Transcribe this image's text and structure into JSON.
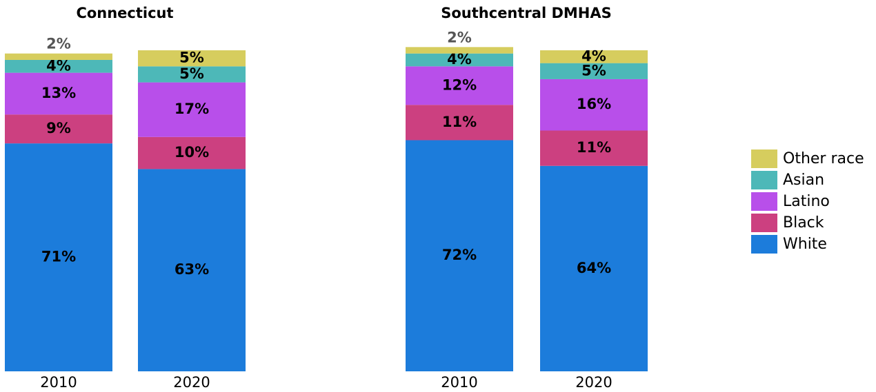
{
  "chart_data": [
    {
      "type": "stacked_bar",
      "title": "Connecticut",
      "categories": [
        "2010",
        "2020"
      ],
      "ylim": [
        0,
        100
      ],
      "series": [
        {
          "name": "White",
          "color": "#1c7cdb",
          "values": [
            71,
            63
          ],
          "value_labels": [
            "71%",
            "63%"
          ]
        },
        {
          "name": "Black",
          "color": "#cc4080",
          "values": [
            9,
            10
          ],
          "value_labels": [
            "9%",
            "10%"
          ]
        },
        {
          "name": "Latino",
          "color": "#b84fea",
          "values": [
            13,
            17
          ],
          "value_labels": [
            "13%",
            "17%"
          ]
        },
        {
          "name": "Asian",
          "color": "#4db8b8",
          "values": [
            4,
            5
          ],
          "value_labels": [
            "4%",
            "5%"
          ]
        },
        {
          "name": "Other race",
          "color": "#d6cd5e",
          "values": [
            2,
            5
          ],
          "value_labels": [
            "2%",
            "5%"
          ]
        }
      ],
      "legend": "right"
    },
    {
      "type": "stacked_bar",
      "title": "Southcentral DMHAS",
      "categories": [
        "2010",
        "2020"
      ],
      "ylim": [
        0,
        100
      ],
      "series": [
        {
          "color": "#1c7cdb",
          "values": [
            72,
            64
          ],
          "value_labels": [
            "72%",
            "64%"
          ]
        },
        {
          "color": "#cc4080",
          "values": [
            11,
            11
          ],
          "value_labels": [
            "11%",
            "11%"
          ]
        },
        {
          "color": "#b84fea",
          "values": [
            12,
            16
          ],
          "value_labels": [
            "12%",
            "16%"
          ]
        },
        {
          "color": "#4db8b8",
          "values": [
            4,
            5
          ],
          "value_labels": [
            "4%",
            "5%"
          ]
        },
        {
          "color": "#d6cd5e",
          "values": [
            2,
            4
          ],
          "value_labels": [
            "2%",
            "4%"
          ]
        }
      ]
    }
  ]
}
